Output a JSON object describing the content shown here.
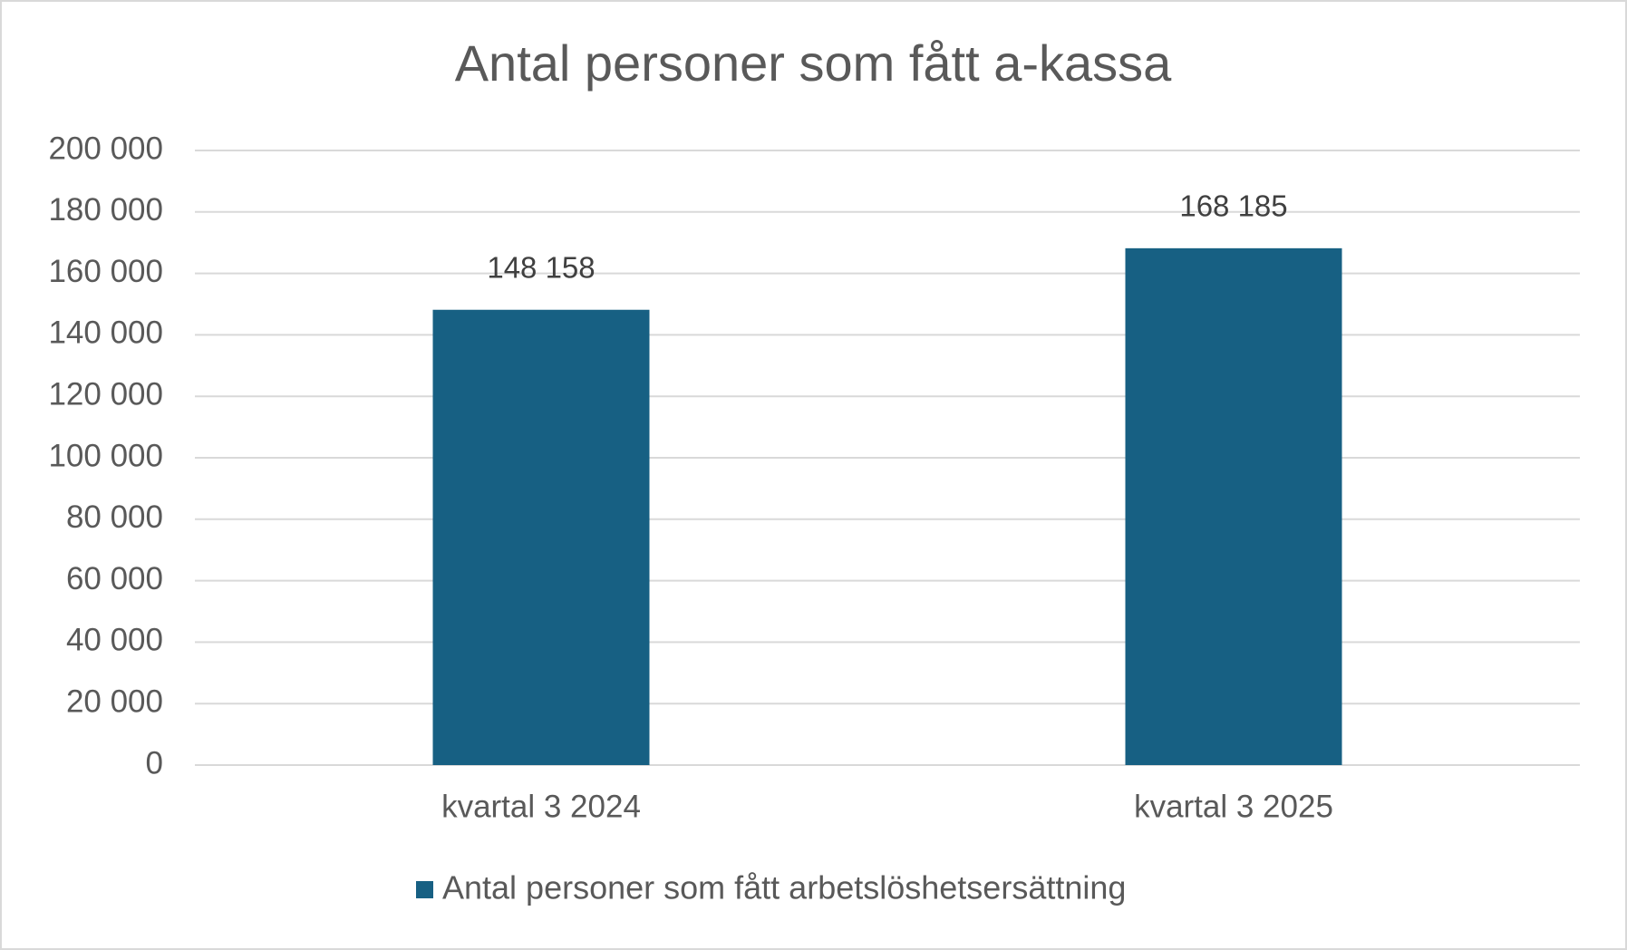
{
  "chart_data": {
    "type": "bar",
    "title": "Antal personer som fått a-kassa",
    "categories": [
      "kvartal 3 2024",
      "kvartal 3 2025"
    ],
    "series": [
      {
        "name": "Antal personer som fått arbetslöshetsersättning",
        "color": "#176083",
        "values": [
          148158,
          168185
        ],
        "value_labels": [
          "148 158",
          "168 185"
        ]
      }
    ],
    "ylim": [
      0,
      200000
    ],
    "yticks": [
      0,
      {
        "value": 20000,
        "label": "20 000"
      },
      {
        "value": 40000,
        "label": "40 000"
      },
      {
        "value": 60000,
        "label": "60 000"
      },
      {
        "value": 80000,
        "label": "80 000"
      },
      {
        "value": 100000,
        "label": "100 000"
      },
      {
        "value": 120000,
        "label": "120 000"
      },
      {
        "value": 140000,
        "label": "140 000"
      },
      {
        "value": 160000,
        "label": "160 000"
      },
      {
        "value": 180000,
        "label": "180 000"
      },
      {
        "value": 200000,
        "label": "200 000"
      }
    ],
    "grid": true,
    "legend": "bottom"
  }
}
